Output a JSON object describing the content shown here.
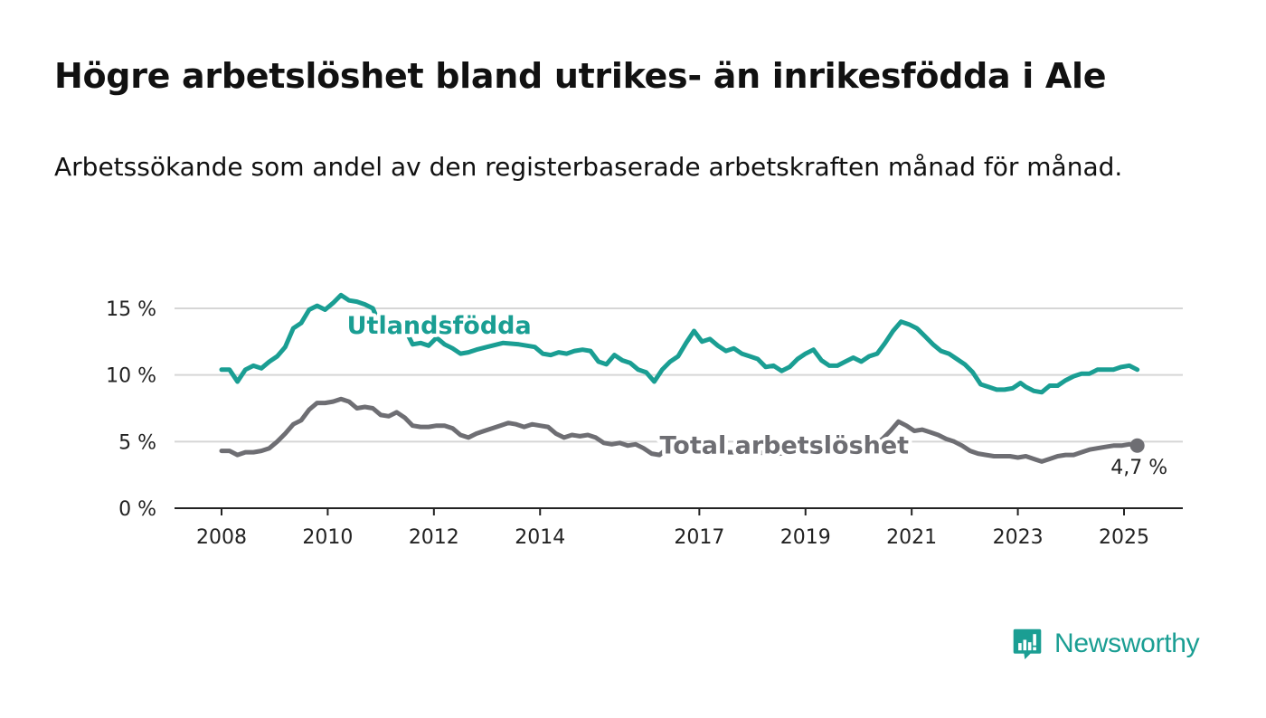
{
  "header": {
    "title": "Högre arbetslöshet bland utrikes- än inrikesfödda i Ale",
    "subtitle": "Arbetssökande som andel av den registerbaserade arbetskraften månad för månad."
  },
  "brand": {
    "name": "Newsworthy",
    "icon": "newsworthy-logo-icon",
    "color": "#1a9e93"
  },
  "chart_data": {
    "type": "line",
    "x_unit": "year",
    "xlim": [
      2008,
      2025.3
    ],
    "ylim": [
      0,
      15
    ],
    "y_ticks": [
      {
        "value": 0,
        "label": "0 %"
      },
      {
        "value": 5,
        "label": "5 %"
      },
      {
        "value": 10,
        "label": "10 %"
      },
      {
        "value": 15,
        "label": "15 %"
      }
    ],
    "x_ticks": [
      {
        "value": 2008,
        "label": "2008"
      },
      {
        "value": 2010,
        "label": "2010"
      },
      {
        "value": 2012,
        "label": "2012"
      },
      {
        "value": 2014,
        "label": "2014"
      },
      {
        "value": 2017,
        "label": "2017"
      },
      {
        "value": 2019,
        "label": "2019"
      },
      {
        "value": 2021,
        "label": "2021"
      },
      {
        "value": 2023,
        "label": "2023"
      },
      {
        "value": 2025,
        "label": "2025"
      }
    ],
    "grid": true,
    "series": [
      {
        "name": "Utlandsfödda",
        "color": "#1a9e93",
        "label_at": [
          2012.1,
          13.1
        ],
        "points": [
          [
            2008.0,
            10.4
          ],
          [
            2008.15,
            10.4
          ],
          [
            2008.3,
            9.5
          ],
          [
            2008.45,
            10.4
          ],
          [
            2008.6,
            10.7
          ],
          [
            2008.75,
            10.5
          ],
          [
            2008.9,
            11.0
          ],
          [
            2009.05,
            11.4
          ],
          [
            2009.2,
            12.1
          ],
          [
            2009.35,
            13.5
          ],
          [
            2009.5,
            13.9
          ],
          [
            2009.65,
            14.9
          ],
          [
            2009.8,
            15.2
          ],
          [
            2009.95,
            14.9
          ],
          [
            2010.1,
            15.4
          ],
          [
            2010.25,
            16.0
          ],
          [
            2010.4,
            15.6
          ],
          [
            2010.55,
            15.5
          ],
          [
            2010.7,
            15.3
          ],
          [
            2010.85,
            15.0
          ],
          [
            2011.0,
            13.6
          ],
          [
            2011.15,
            13.4
          ],
          [
            2011.3,
            14.1
          ],
          [
            2011.45,
            13.5
          ],
          [
            2011.6,
            12.3
          ],
          [
            2011.75,
            12.4
          ],
          [
            2011.9,
            12.2
          ],
          [
            2012.05,
            12.8
          ],
          [
            2012.2,
            12.3
          ],
          [
            2012.35,
            12.0
          ],
          [
            2012.5,
            11.6
          ],
          [
            2012.65,
            11.7
          ],
          [
            2012.8,
            11.9
          ],
          [
            2013.0,
            12.1
          ],
          [
            2013.3,
            12.4
          ],
          [
            2013.6,
            12.3
          ],
          [
            2013.9,
            12.1
          ],
          [
            2014.05,
            11.6
          ],
          [
            2014.2,
            11.5
          ],
          [
            2014.35,
            11.7
          ],
          [
            2014.5,
            11.6
          ],
          [
            2014.65,
            11.8
          ],
          [
            2014.8,
            11.9
          ],
          [
            2014.95,
            11.8
          ],
          [
            2015.1,
            11.0
          ],
          [
            2015.25,
            10.8
          ],
          [
            2015.4,
            11.5
          ],
          [
            2015.55,
            11.1
          ],
          [
            2015.7,
            10.9
          ],
          [
            2015.85,
            10.4
          ],
          [
            2016.0,
            10.2
          ],
          [
            2016.15,
            9.5
          ],
          [
            2016.3,
            10.4
          ],
          [
            2016.45,
            11.0
          ],
          [
            2016.6,
            11.4
          ],
          [
            2016.75,
            12.4
          ],
          [
            2016.9,
            13.3
          ],
          [
            2017.05,
            12.5
          ],
          [
            2017.2,
            12.7
          ],
          [
            2017.35,
            12.2
          ],
          [
            2017.5,
            11.8
          ],
          [
            2017.65,
            12.0
          ],
          [
            2017.8,
            11.6
          ],
          [
            2017.95,
            11.4
          ],
          [
            2018.1,
            11.2
          ],
          [
            2018.25,
            10.6
          ],
          [
            2018.4,
            10.7
          ],
          [
            2018.55,
            10.3
          ],
          [
            2018.7,
            10.6
          ],
          [
            2018.85,
            11.2
          ],
          [
            2019.0,
            11.6
          ],
          [
            2019.15,
            11.9
          ],
          [
            2019.3,
            11.1
          ],
          [
            2019.45,
            10.7
          ],
          [
            2019.6,
            10.7
          ],
          [
            2019.75,
            11.0
          ],
          [
            2019.9,
            11.3
          ],
          [
            2020.05,
            11.0
          ],
          [
            2020.2,
            11.4
          ],
          [
            2020.35,
            11.6
          ],
          [
            2020.5,
            12.4
          ],
          [
            2020.65,
            13.3
          ],
          [
            2020.8,
            14.0
          ],
          [
            2020.95,
            13.8
          ],
          [
            2021.1,
            13.5
          ],
          [
            2021.25,
            12.9
          ],
          [
            2021.4,
            12.3
          ],
          [
            2021.55,
            11.8
          ],
          [
            2021.7,
            11.6
          ],
          [
            2021.85,
            11.2
          ],
          [
            2022.0,
            10.8
          ],
          [
            2022.15,
            10.2
          ],
          [
            2022.3,
            9.3
          ],
          [
            2022.45,
            9.1
          ],
          [
            2022.6,
            8.9
          ],
          [
            2022.75,
            8.9
          ],
          [
            2022.9,
            9.0
          ],
          [
            2023.05,
            9.4
          ],
          [
            2023.15,
            9.1
          ],
          [
            2023.3,
            8.8
          ],
          [
            2023.45,
            8.7
          ],
          [
            2023.6,
            9.2
          ],
          [
            2023.75,
            9.2
          ],
          [
            2023.9,
            9.6
          ],
          [
            2024.05,
            9.9
          ],
          [
            2024.2,
            10.1
          ],
          [
            2024.35,
            10.1
          ],
          [
            2024.5,
            10.4
          ],
          [
            2024.65,
            10.4
          ],
          [
            2024.8,
            10.4
          ],
          [
            2024.95,
            10.6
          ],
          [
            2025.1,
            10.7
          ],
          [
            2025.25,
            10.4
          ]
        ]
      },
      {
        "name": "Total arbetslöshet",
        "color": "#6e6e73",
        "label_at": [
          2018.6,
          4.1
        ],
        "end_label": "4,7 %",
        "points": [
          [
            2008.0,
            4.3
          ],
          [
            2008.15,
            4.3
          ],
          [
            2008.3,
            4.0
          ],
          [
            2008.45,
            4.2
          ],
          [
            2008.6,
            4.2
          ],
          [
            2008.75,
            4.3
          ],
          [
            2008.9,
            4.5
          ],
          [
            2009.05,
            5.0
          ],
          [
            2009.2,
            5.6
          ],
          [
            2009.35,
            6.3
          ],
          [
            2009.5,
            6.6
          ],
          [
            2009.65,
            7.4
          ],
          [
            2009.8,
            7.9
          ],
          [
            2009.95,
            7.9
          ],
          [
            2010.1,
            8.0
          ],
          [
            2010.25,
            8.2
          ],
          [
            2010.4,
            8.0
          ],
          [
            2010.55,
            7.5
          ],
          [
            2010.7,
            7.6
          ],
          [
            2010.85,
            7.5
          ],
          [
            2011.0,
            7.0
          ],
          [
            2011.15,
            6.9
          ],
          [
            2011.3,
            7.2
          ],
          [
            2011.45,
            6.8
          ],
          [
            2011.6,
            6.2
          ],
          [
            2011.75,
            6.1
          ],
          [
            2011.9,
            6.1
          ],
          [
            2012.05,
            6.2
          ],
          [
            2012.2,
            6.2
          ],
          [
            2012.35,
            6.0
          ],
          [
            2012.5,
            5.5
          ],
          [
            2012.65,
            5.3
          ],
          [
            2012.8,
            5.6
          ],
          [
            2012.95,
            5.8
          ],
          [
            2013.1,
            6.0
          ],
          [
            2013.25,
            6.2
          ],
          [
            2013.4,
            6.4
          ],
          [
            2013.55,
            6.3
          ],
          [
            2013.7,
            6.1
          ],
          [
            2013.85,
            6.3
          ],
          [
            2014.0,
            6.2
          ],
          [
            2014.15,
            6.1
          ],
          [
            2014.3,
            5.6
          ],
          [
            2014.45,
            5.3
          ],
          [
            2014.6,
            5.5
          ],
          [
            2014.75,
            5.4
          ],
          [
            2014.9,
            5.5
          ],
          [
            2015.05,
            5.3
          ],
          [
            2015.2,
            4.9
          ],
          [
            2015.35,
            4.8
          ],
          [
            2015.5,
            4.9
          ],
          [
            2015.65,
            4.7
          ],
          [
            2015.8,
            4.8
          ],
          [
            2015.95,
            4.5
          ],
          [
            2016.1,
            4.1
          ],
          [
            2016.25,
            4.0
          ],
          [
            2016.4,
            4.5
          ],
          [
            2016.55,
            4.6
          ],
          [
            2016.7,
            4.5
          ],
          [
            2016.85,
            4.7
          ],
          [
            2017.0,
            4.6
          ],
          [
            2017.15,
            4.4
          ],
          [
            2017.3,
            4.4
          ],
          [
            2017.5,
            4.2
          ],
          [
            2018.0,
            4.2
          ],
          [
            2018.5,
            4.1
          ],
          [
            2019.0,
            4.4
          ],
          [
            2019.5,
            4.5
          ],
          [
            2020.0,
            4.6
          ],
          [
            2020.3,
            4.8
          ],
          [
            2020.45,
            5.2
          ],
          [
            2020.6,
            5.8
          ],
          [
            2020.75,
            6.5
          ],
          [
            2020.9,
            6.2
          ],
          [
            2021.05,
            5.8
          ],
          [
            2021.2,
            5.9
          ],
          [
            2021.35,
            5.7
          ],
          [
            2021.5,
            5.5
          ],
          [
            2021.65,
            5.2
          ],
          [
            2021.8,
            5.0
          ],
          [
            2021.95,
            4.7
          ],
          [
            2022.1,
            4.3
          ],
          [
            2022.25,
            4.1
          ],
          [
            2022.4,
            4.0
          ],
          [
            2022.55,
            3.9
          ],
          [
            2022.7,
            3.9
          ],
          [
            2022.85,
            3.9
          ],
          [
            2023.0,
            3.8
          ],
          [
            2023.15,
            3.9
          ],
          [
            2023.3,
            3.7
          ],
          [
            2023.45,
            3.5
          ],
          [
            2023.6,
            3.7
          ],
          [
            2023.75,
            3.9
          ],
          [
            2023.9,
            4.0
          ],
          [
            2024.05,
            4.0
          ],
          [
            2024.2,
            4.2
          ],
          [
            2024.35,
            4.4
          ],
          [
            2024.5,
            4.5
          ],
          [
            2024.65,
            4.6
          ],
          [
            2024.8,
            4.7
          ],
          [
            2024.95,
            4.7
          ],
          [
            2025.1,
            4.8
          ],
          [
            2025.25,
            4.7
          ]
        ]
      }
    ]
  }
}
